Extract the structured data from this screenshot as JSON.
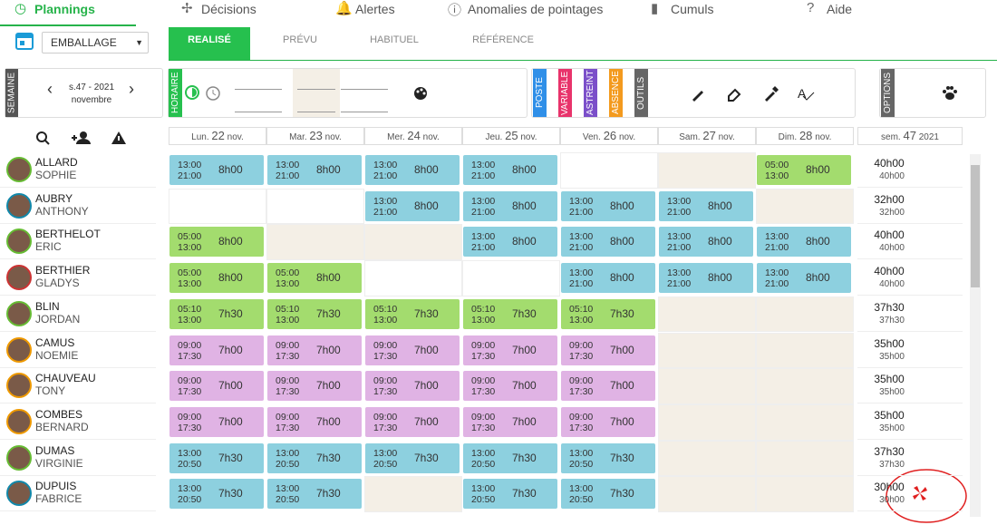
{
  "nav": {
    "tabs": [
      "Plannings",
      "Décisions",
      "Alertes",
      "Anomalies de pointages",
      "Cumuls",
      "Aide"
    ]
  },
  "toolbar": {
    "group": "EMBALLAGE",
    "subtabs": [
      "REALISÉ",
      "PRÉVU",
      "HABITUEL",
      "RÉFÉRENCE"
    ],
    "week_label": "SEMAINE",
    "week": "s.47 - 2021",
    "month": "novembre",
    "horaire_label": "HORAIRE",
    "side_labels": [
      {
        "text": "POSTE",
        "color": "#2f8fe8"
      },
      {
        "text": "VARIABLE",
        "color": "#e8336b"
      },
      {
        "text": "ASTREINT",
        "color": "#7b4fc9"
      },
      {
        "text": "ABSENCE",
        "color": "#f39a1e"
      },
      {
        "text": "OUTILS",
        "color": "#666666"
      },
      {
        "text": "OPTIONS",
        "color": "#666666"
      }
    ]
  },
  "days": [
    {
      "name": "Lun.",
      "num": "22",
      "month": "nov."
    },
    {
      "name": "Mar.",
      "num": "23",
      "month": "nov."
    },
    {
      "name": "Mer.",
      "num": "24",
      "month": "nov."
    },
    {
      "name": "Jeu.",
      "num": "25",
      "month": "nov."
    },
    {
      "name": "Ven.",
      "num": "26",
      "month": "nov."
    },
    {
      "name": "Sam.",
      "num": "27",
      "month": "nov."
    },
    {
      "name": "Dim.",
      "num": "28",
      "month": "nov."
    }
  ],
  "summary": {
    "name": "sem.",
    "num": "47",
    "year": "2021"
  },
  "employees": [
    {
      "last": "ALLARD",
      "first": "SOPHIE",
      "total": "40h00",
      "sub": "40h00",
      "cells": [
        {
          "start": "13:00",
          "end": "21:00",
          "dur": "8h00",
          "fill": "#8dd0df"
        },
        {
          "start": "13:00",
          "end": "21:00",
          "dur": "8h00",
          "fill": "#8dd0df"
        },
        {
          "start": "13:00",
          "end": "21:00",
          "dur": "8h00",
          "fill": "#8dd0df"
        },
        {
          "start": "13:00",
          "end": "21:00",
          "dur": "8h00",
          "fill": "#8dd0df"
        },
        {
          "fill": "#ffffff"
        },
        {
          "fill": "#f4efe6"
        },
        {
          "start": "05:00",
          "end": "13:00",
          "dur": "8h00",
          "fill": "#a3dc6e"
        }
      ]
    },
    {
      "last": "AUBRY",
      "first": "ANTHONY",
      "total": "32h00",
      "sub": "32h00",
      "cells": [
        {
          "fill": "#ffffff"
        },
        {
          "fill": "#ffffff"
        },
        {
          "start": "13:00",
          "end": "21:00",
          "dur": "8h00",
          "fill": "#8dd0df"
        },
        {
          "start": "13:00",
          "end": "21:00",
          "dur": "8h00",
          "fill": "#8dd0df"
        },
        {
          "start": "13:00",
          "end": "21:00",
          "dur": "8h00",
          "fill": "#8dd0df"
        },
        {
          "start": "13:00",
          "end": "21:00",
          "dur": "8h00",
          "fill": "#8dd0df"
        },
        {
          "fill": "#f4efe6"
        }
      ]
    },
    {
      "last": "BERTHELOT",
      "first": "ERIC",
      "total": "40h00",
      "sub": "40h00",
      "cells": [
        {
          "start": "05:00",
          "end": "13:00",
          "dur": "8h00",
          "fill": "#a3dc6e"
        },
        {
          "fill": "#f4efe6"
        },
        {
          "fill": "#f4efe6"
        },
        {
          "start": "13:00",
          "end": "21:00",
          "dur": "8h00",
          "fill": "#8dd0df"
        },
        {
          "start": "13:00",
          "end": "21:00",
          "dur": "8h00",
          "fill": "#8dd0df"
        },
        {
          "start": "13:00",
          "end": "21:00",
          "dur": "8h00",
          "fill": "#8dd0df"
        },
        {
          "start": "13:00",
          "end": "21:00",
          "dur": "8h00",
          "fill": "#8dd0df"
        }
      ]
    },
    {
      "last": "BERTHIER",
      "first": "GLADYS",
      "total": "40h00",
      "sub": "40h00",
      "cells": [
        {
          "start": "05:00",
          "end": "13:00",
          "dur": "8h00",
          "fill": "#a3dc6e"
        },
        {
          "start": "05:00",
          "end": "13:00",
          "dur": "8h00",
          "fill": "#a3dc6e"
        },
        {
          "fill": "#ffffff"
        },
        {
          "fill": "#ffffff"
        },
        {
          "start": "13:00",
          "end": "21:00",
          "dur": "8h00",
          "fill": "#8dd0df"
        },
        {
          "start": "13:00",
          "end": "21:00",
          "dur": "8h00",
          "fill": "#8dd0df"
        },
        {
          "start": "13:00",
          "end": "21:00",
          "dur": "8h00",
          "fill": "#8dd0df"
        }
      ]
    },
    {
      "last": "BLIN",
      "first": "JORDAN",
      "total": "37h30",
      "sub": "37h30",
      "cells": [
        {
          "start": "05:10",
          "end": "13:00",
          "dur": "7h30",
          "fill": "#a3dc6e"
        },
        {
          "start": "05:10",
          "end": "13:00",
          "dur": "7h30",
          "fill": "#a3dc6e"
        },
        {
          "start": "05:10",
          "end": "13:00",
          "dur": "7h30",
          "fill": "#a3dc6e"
        },
        {
          "start": "05:10",
          "end": "13:00",
          "dur": "7h30",
          "fill": "#a3dc6e"
        },
        {
          "start": "05:10",
          "end": "13:00",
          "dur": "7h30",
          "fill": "#a3dc6e"
        },
        {
          "fill": "#f4efe6"
        },
        {
          "fill": "#f4efe6"
        }
      ]
    },
    {
      "last": "CAMUS",
      "first": "NOEMIE",
      "total": "35h00",
      "sub": "35h00",
      "cells": [
        {
          "start": "09:00",
          "end": "17:30",
          "dur": "7h00",
          "fill": "#e0b3e4"
        },
        {
          "start": "09:00",
          "end": "17:30",
          "dur": "7h00",
          "fill": "#e0b3e4"
        },
        {
          "start": "09:00",
          "end": "17:30",
          "dur": "7h00",
          "fill": "#e0b3e4"
        },
        {
          "start": "09:00",
          "end": "17:30",
          "dur": "7h00",
          "fill": "#e0b3e4"
        },
        {
          "start": "09:00",
          "end": "17:30",
          "dur": "7h00",
          "fill": "#e0b3e4"
        },
        {
          "fill": "#f4efe6"
        },
        {
          "fill": "#f4efe6"
        }
      ]
    },
    {
      "last": "CHAUVEAU",
      "first": "TONY",
      "total": "35h00",
      "sub": "35h00",
      "cells": [
        {
          "start": "09:00",
          "end": "17:30",
          "dur": "7h00",
          "fill": "#e0b3e4"
        },
        {
          "start": "09:00",
          "end": "17:30",
          "dur": "7h00",
          "fill": "#e0b3e4"
        },
        {
          "start": "09:00",
          "end": "17:30",
          "dur": "7h00",
          "fill": "#e0b3e4"
        },
        {
          "start": "09:00",
          "end": "17:30",
          "dur": "7h00",
          "fill": "#e0b3e4"
        },
        {
          "start": "09:00",
          "end": "17:30",
          "dur": "7h00",
          "fill": "#e0b3e4"
        },
        {
          "fill": "#f4efe6"
        },
        {
          "fill": "#f4efe6"
        }
      ]
    },
    {
      "last": "COMBES",
      "first": "BERNARD",
      "total": "35h00",
      "sub": "35h00",
      "cells": [
        {
          "start": "09:00",
          "end": "17:30",
          "dur": "7h00",
          "fill": "#e0b3e4"
        },
        {
          "start": "09:00",
          "end": "17:30",
          "dur": "7h00",
          "fill": "#e0b3e4"
        },
        {
          "start": "09:00",
          "end": "17:30",
          "dur": "7h00",
          "fill": "#e0b3e4"
        },
        {
          "start": "09:00",
          "end": "17:30",
          "dur": "7h00",
          "fill": "#e0b3e4"
        },
        {
          "start": "09:00",
          "end": "17:30",
          "dur": "7h00",
          "fill": "#e0b3e4"
        },
        {
          "fill": "#f4efe6"
        },
        {
          "fill": "#f4efe6"
        }
      ]
    },
    {
      "last": "DUMAS",
      "first": "VIRGINIE",
      "total": "37h30",
      "sub": "37h30",
      "cells": [
        {
          "start": "13:00",
          "end": "20:50",
          "dur": "7h30",
          "fill": "#8dd0df"
        },
        {
          "start": "13:00",
          "end": "20:50",
          "dur": "7h30",
          "fill": "#8dd0df"
        },
        {
          "start": "13:00",
          "end": "20:50",
          "dur": "7h30",
          "fill": "#8dd0df"
        },
        {
          "start": "13:00",
          "end": "20:50",
          "dur": "7h30",
          "fill": "#8dd0df"
        },
        {
          "start": "13:00",
          "end": "20:50",
          "dur": "7h30",
          "fill": "#8dd0df"
        },
        {
          "fill": "#f4efe6"
        },
        {
          "fill": "#f4efe6"
        }
      ]
    },
    {
      "last": "DUPUIS",
      "first": "FABRICE",
      "total": "30h00",
      "sub": "30h00",
      "cells": [
        {
          "start": "13:00",
          "end": "20:50",
          "dur": "7h30",
          "fill": "#8dd0df"
        },
        {
          "start": "13:00",
          "end": "20:50",
          "dur": "7h30",
          "fill": "#8dd0df"
        },
        {
          "fill": "#f4efe6"
        },
        {
          "start": "13:00",
          "end": "20:50",
          "dur": "7h30",
          "fill": "#8dd0df"
        },
        {
          "start": "13:00",
          "end": "20:50",
          "dur": "7h30",
          "fill": "#8dd0df"
        },
        {
          "fill": "#f4efe6"
        },
        {
          "fill": "#f4efe6"
        }
      ]
    }
  ]
}
